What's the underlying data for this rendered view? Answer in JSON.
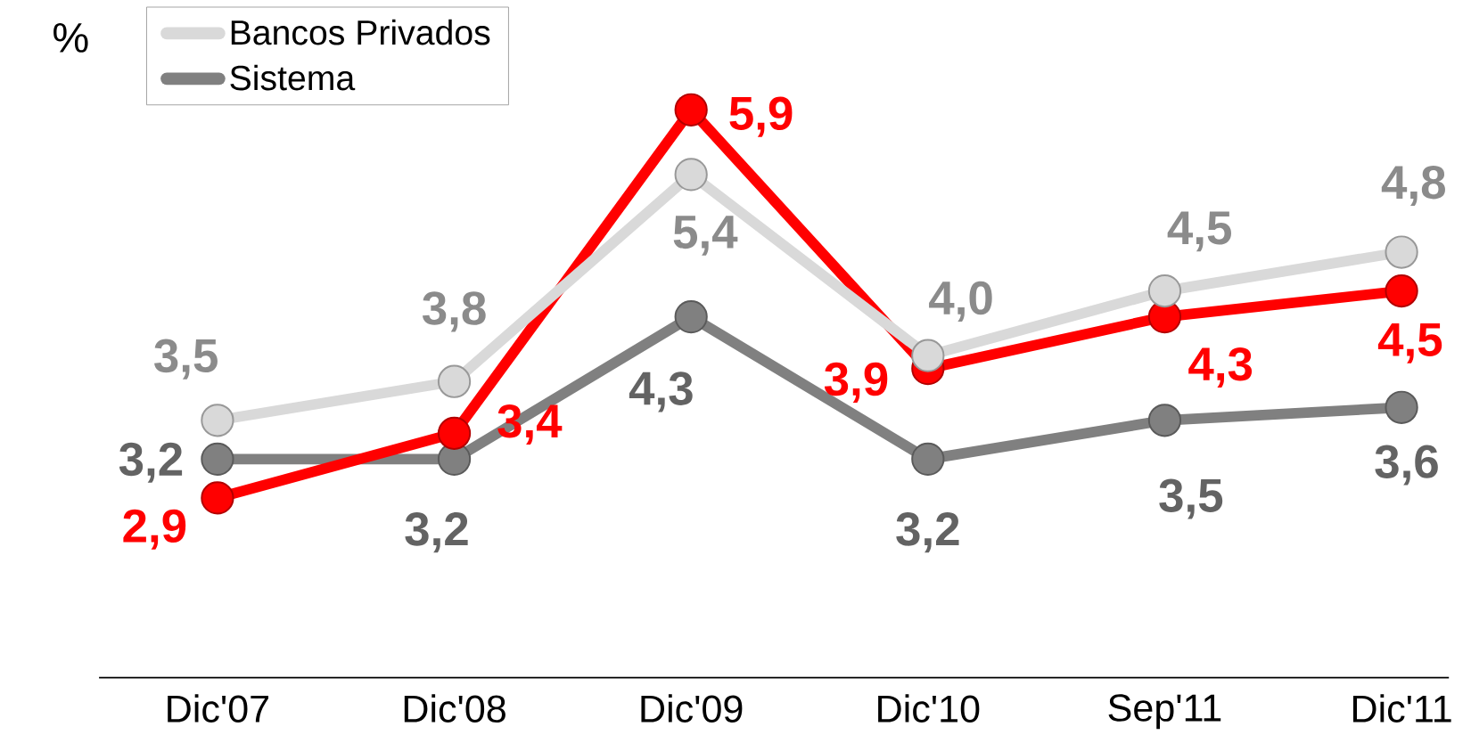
{
  "chart_data": {
    "type": "line",
    "ylabel": "%",
    "categories": [
      "Dic'07",
      "Dic'08",
      "Dic'09",
      "Dic'10",
      "Sep'11",
      "Dic'11"
    ],
    "series": [
      {
        "name": "Bancos Privados",
        "color": "#d9d9d9",
        "values": [
          3.5,
          3.8,
          5.4,
          4.0,
          4.5,
          4.8
        ],
        "value_labels": [
          "3,5",
          "3,8",
          "5,4",
          "4,0",
          "4,5",
          "4,8"
        ]
      },
      {
        "color": "#ff0000",
        "values": [
          2.9,
          3.4,
          5.9,
          3.9,
          4.3,
          4.5
        ],
        "value_labels": [
          "2,9",
          "3,4",
          "5,9",
          "3,9",
          "4,3",
          "4,5"
        ]
      },
      {
        "name": "Sistema",
        "color": "#808080",
        "values": [
          3.2,
          3.2,
          4.3,
          3.2,
          3.5,
          3.6
        ],
        "value_labels": [
          "3,2",
          "3,2",
          "4,3",
          "3,2",
          "3,5",
          "3,6"
        ]
      }
    ],
    "marker": "circle",
    "legend": "top left",
    "tick_labels": "x"
  }
}
